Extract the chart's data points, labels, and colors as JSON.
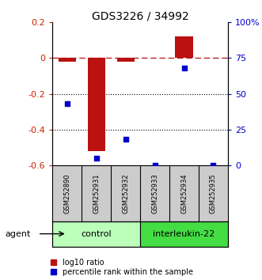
{
  "title": "GDS3226 / 34992",
  "samples": [
    "GSM252890",
    "GSM252931",
    "GSM252932",
    "GSM252933",
    "GSM252934",
    "GSM252935"
  ],
  "log10_ratio": [
    -0.02,
    -0.52,
    -0.02,
    0.0,
    0.12,
    0.0
  ],
  "percentile_rank": [
    43,
    5,
    18,
    0,
    68,
    0
  ],
  "groups": [
    {
      "label": "control",
      "indices": [
        0,
        1,
        2
      ],
      "color": "#bbffbb"
    },
    {
      "label": "interleukin-22",
      "indices": [
        3,
        4,
        5
      ],
      "color": "#44dd44"
    }
  ],
  "bar_color": "#bb1111",
  "dot_color": "#0000cc",
  "ylim_left": [
    -0.6,
    0.2
  ],
  "ylim_right": [
    0,
    100
  ],
  "yticks_left": [
    -0.6,
    -0.4,
    -0.2,
    0.0,
    0.2
  ],
  "yticks_right": [
    0,
    25,
    50,
    75,
    100
  ],
  "ytick_labels_left": [
    "-0.6",
    "-0.4",
    "-0.2",
    "0",
    "0.2"
  ],
  "ytick_labels_right": [
    "0",
    "25",
    "50",
    "75",
    "100%"
  ],
  "hline_y": 0.0,
  "dotted_lines": [
    -0.2,
    -0.4
  ],
  "color_left": "#cc2200",
  "color_right": "#0000cc",
  "legend_red_label": "log10 ratio",
  "legend_blue_label": "percentile rank within the sample",
  "agent_label": "agent",
  "bar_width": 0.6,
  "sample_label_bg": "#cccccc",
  "background_color": "#ffffff"
}
